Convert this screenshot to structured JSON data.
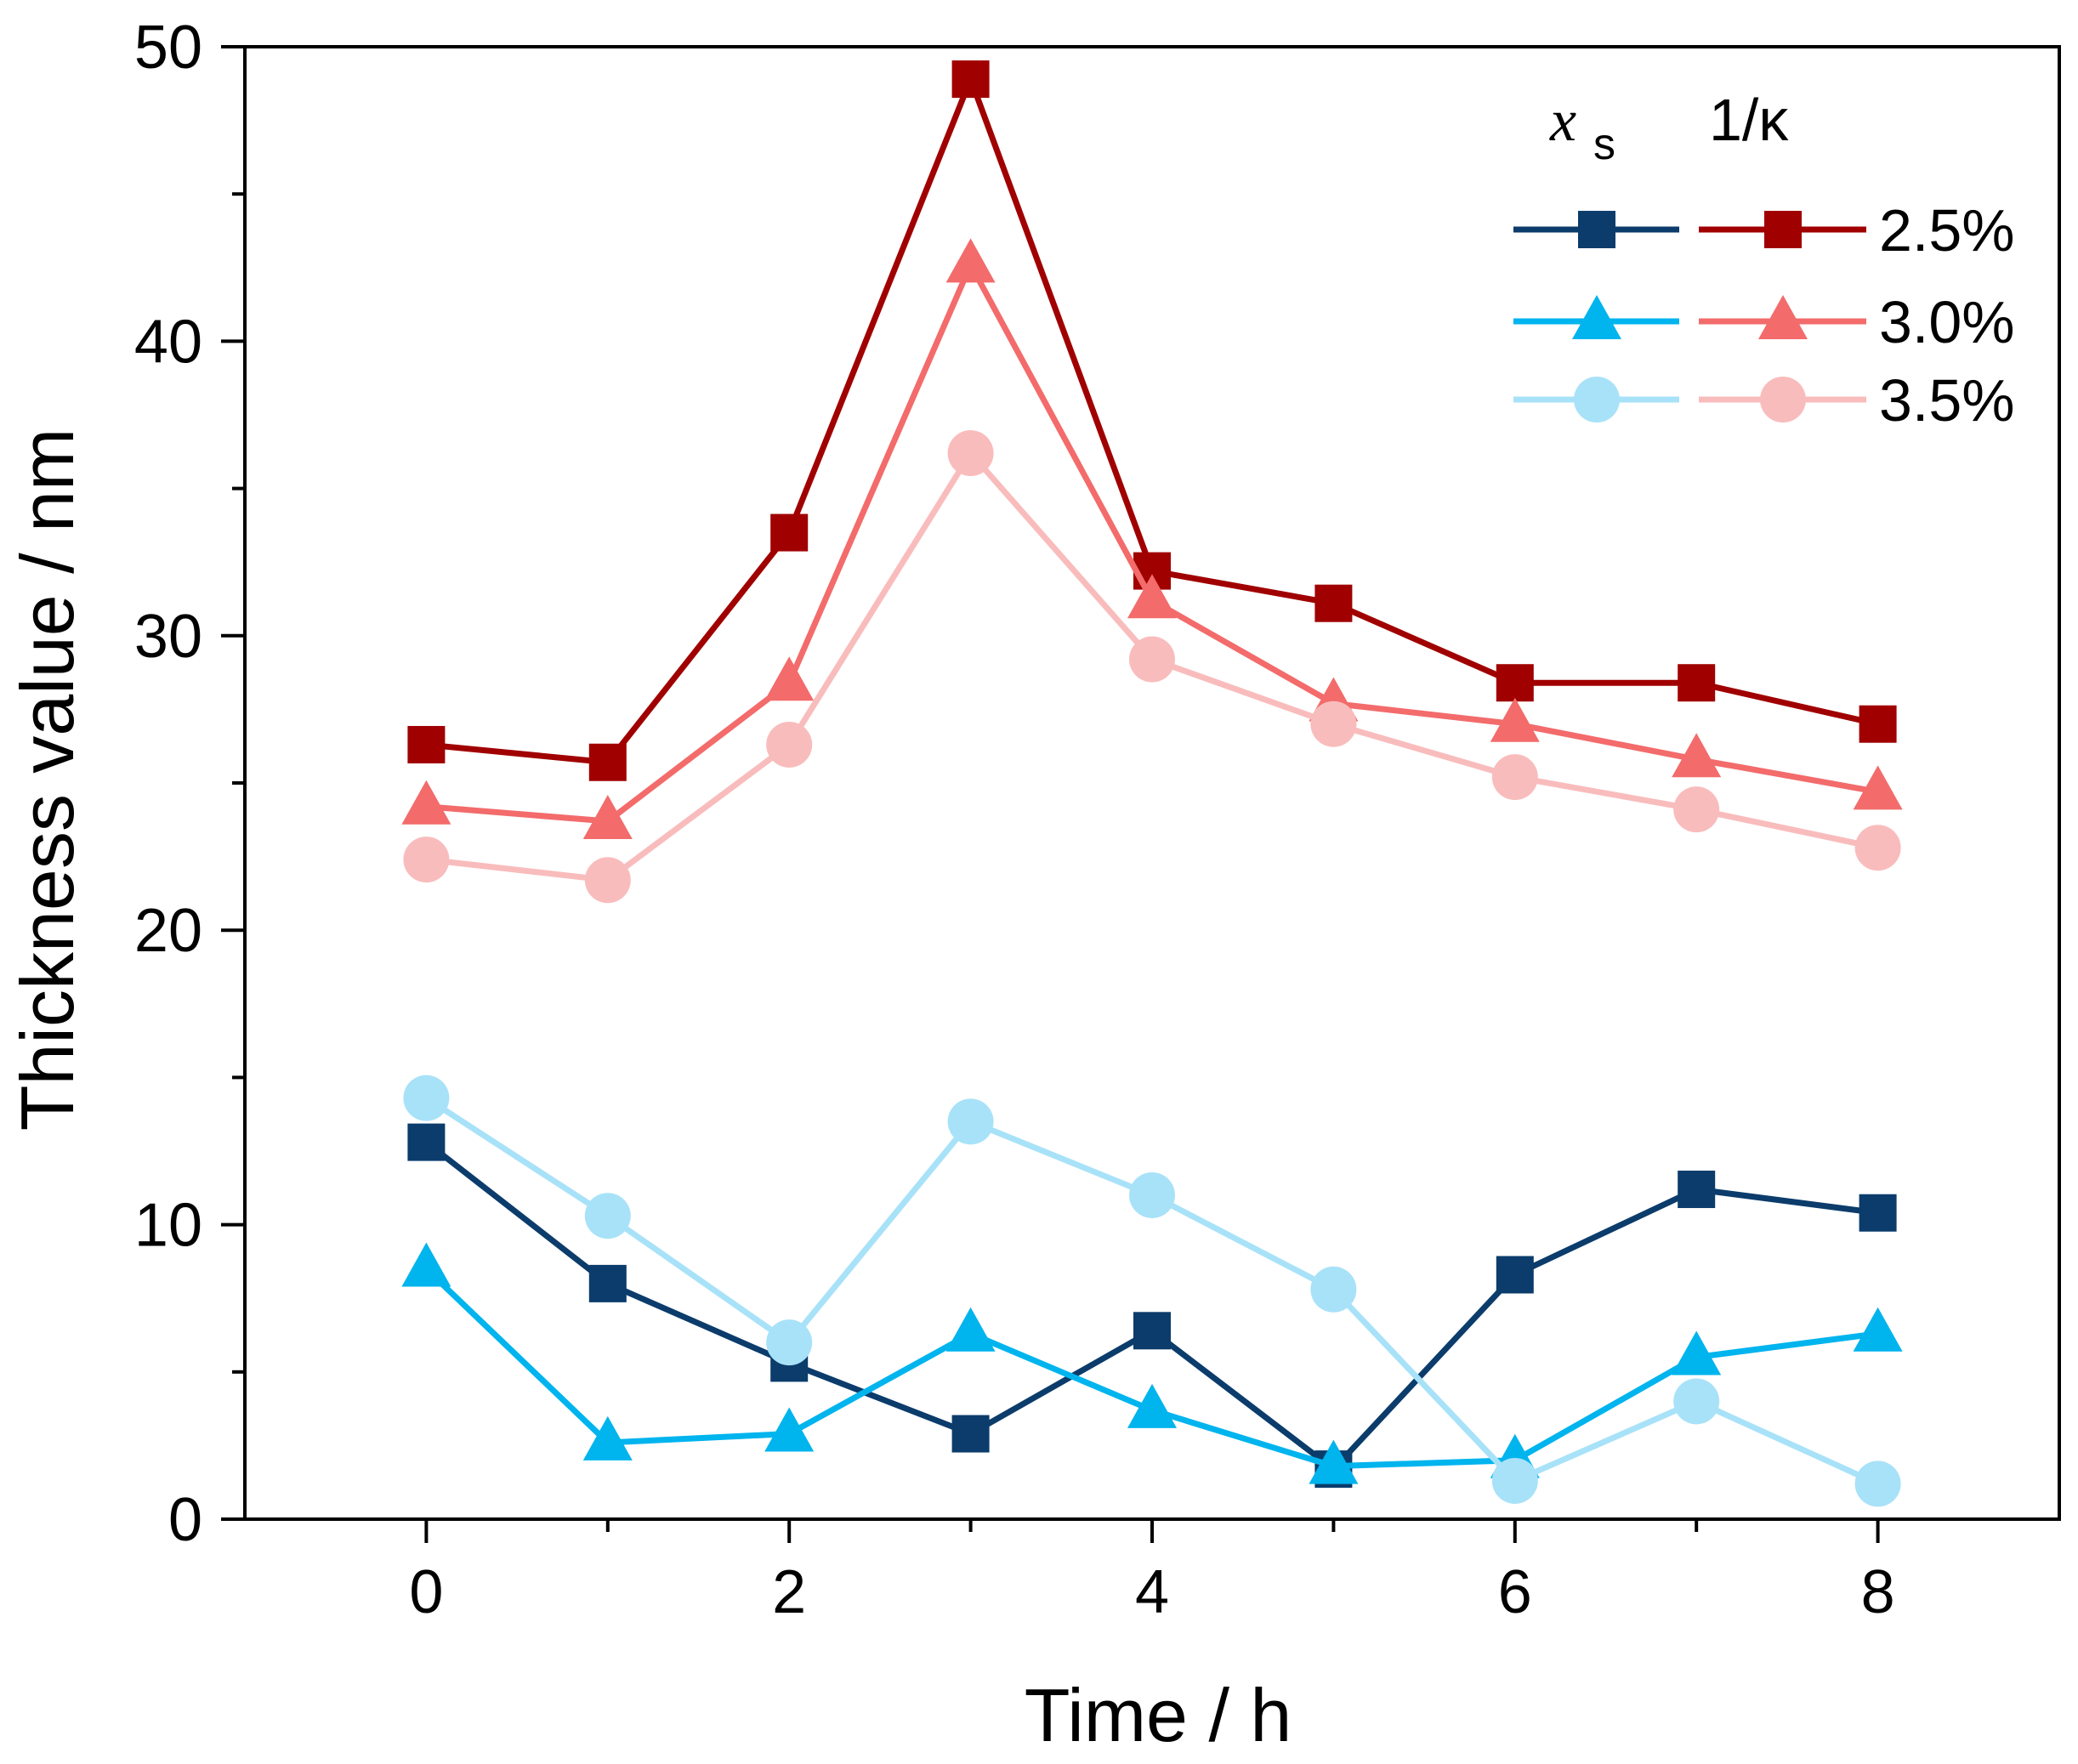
{
  "chart_data": {
    "type": "line",
    "title": "",
    "xlabel": "Time / h",
    "ylabel": "Thickness value / nm",
    "xlim": [
      -1,
      9
    ],
    "ylim": [
      0,
      50
    ],
    "x_ticks": [
      0,
      2,
      4,
      6,
      8
    ],
    "y_ticks": [
      0,
      10,
      20,
      30,
      40,
      50
    ],
    "x_minor_ticks": [
      1,
      3,
      5,
      7
    ],
    "y_minor_ticks": [
      5,
      15,
      25,
      35,
      45
    ],
    "x": [
      0,
      1,
      2,
      3,
      4,
      5,
      6,
      7,
      8
    ],
    "legend": {
      "placement": "top-right",
      "header_left": "x",
      "header_left_sub": "s",
      "header_right": "1/κ",
      "rows": [
        "2.5%",
        "3.0%",
        "3.5%"
      ]
    },
    "series": [
      {
        "name": "x_s 2.5%",
        "group": "xs",
        "row": 0,
        "marker": "square",
        "color": "#0b3c6b",
        "values": [
          12.8,
          8.0,
          5.3,
          2.9,
          6.4,
          1.7,
          8.3,
          11.2,
          10.4
        ]
      },
      {
        "name": "x_s 3.0%",
        "group": "xs",
        "row": 1,
        "marker": "triangle",
        "color": "#00b4ee",
        "values": [
          8.5,
          2.6,
          2.9,
          6.3,
          3.7,
          1.8,
          2.0,
          5.5,
          6.3
        ]
      },
      {
        "name": "x_s 3.5%",
        "group": "xs",
        "row": 2,
        "marker": "circle",
        "color": "#a8e2f8",
        "values": [
          14.3,
          10.3,
          6.0,
          13.5,
          11.0,
          7.8,
          1.3,
          4.0,
          1.2
        ]
      },
      {
        "name": "1/κ 2.5%",
        "group": "kappa",
        "row": 0,
        "marker": "square",
        "color": "#a00000",
        "values": [
          26.3,
          25.7,
          33.5,
          48.9,
          32.2,
          31.1,
          28.4,
          28.4,
          27.0
        ]
      },
      {
        "name": "1/κ 3.0%",
        "group": "kappa",
        "row": 1,
        "marker": "triangle",
        "color": "#f36b6b",
        "values": [
          24.2,
          23.7,
          28.4,
          42.6,
          31.2,
          27.7,
          27.0,
          25.8,
          24.7
        ]
      },
      {
        "name": "1/κ 3.5%",
        "group": "kappa",
        "row": 2,
        "marker": "circle",
        "color": "#f9bcbc",
        "values": [
          22.4,
          21.7,
          26.3,
          36.2,
          29.2,
          27.0,
          25.2,
          24.1,
          22.8
        ]
      }
    ]
  }
}
